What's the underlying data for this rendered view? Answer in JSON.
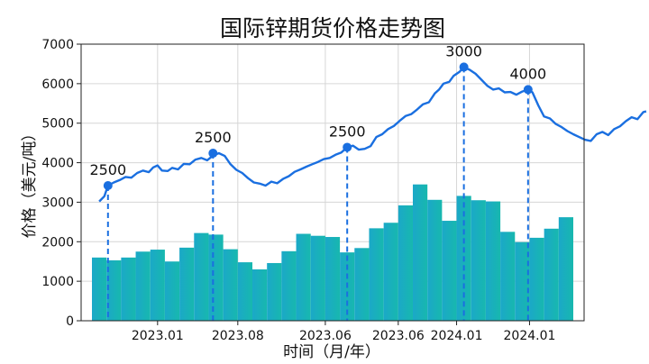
{
  "chart_data": {
    "type": "bar",
    "title": "国际锌期货价格走势图",
    "xlabel": "时间（月/年）",
    "ylabel": "价格（美元/吨）",
    "ylim": [
      0,
      7000
    ],
    "yticks": [
      0,
      1000,
      2000,
      3000,
      4000,
      5000,
      6000,
      7000
    ],
    "grid": true,
    "xtick_labels": [
      "2023.01",
      "2023.08",
      "2023.06",
      "2023.06",
      "2024.01",
      "2024.01"
    ],
    "xtick_index": [
      4,
      9.5,
      15.5,
      20.5,
      24.5,
      29.5
    ],
    "bars": {
      "values": [
        1600,
        1530,
        1600,
        1750,
        1800,
        1500,
        1850,
        2220,
        2180,
        1810,
        1480,
        1300,
        1460,
        1760,
        2200,
        2150,
        2120,
        1730,
        1840,
        2340,
        2480,
        2920,
        3450,
        3060,
        2530,
        3160,
        3050,
        3020,
        2250,
        1990,
        2100,
        2330,
        2620
      ],
      "colors": [
        "#1ba8c8",
        "#17b8ae"
      ]
    },
    "line": {
      "color": "#1a6fe0",
      "points": [
        [
          0.0,
          3020
        ],
        [
          0.35,
          3150
        ],
        [
          0.6,
          3420
        ],
        [
          1.0,
          3500
        ],
        [
          1.4,
          3560
        ],
        [
          1.8,
          3640
        ],
        [
          2.2,
          3620
        ],
        [
          2.6,
          3740
        ],
        [
          3.0,
          3800
        ],
        [
          3.4,
          3760
        ],
        [
          3.7,
          3880
        ],
        [
          4.0,
          3930
        ],
        [
          4.3,
          3800
        ],
        [
          4.7,
          3790
        ],
        [
          5.0,
          3870
        ],
        [
          5.4,
          3830
        ],
        [
          5.8,
          3970
        ],
        [
          6.2,
          3960
        ],
        [
          6.6,
          4080
        ],
        [
          7.0,
          4120
        ],
        [
          7.4,
          4060
        ],
        [
          7.8,
          4180
        ],
        [
          8.2,
          4240
        ],
        [
          8.6,
          4170
        ],
        [
          9.0,
          3960
        ],
        [
          9.4,
          3820
        ],
        [
          9.8,
          3740
        ],
        [
          10.2,
          3610
        ],
        [
          10.6,
          3500
        ],
        [
          11.0,
          3470
        ],
        [
          11.4,
          3420
        ],
        [
          11.8,
          3520
        ],
        [
          12.2,
          3480
        ],
        [
          12.6,
          3590
        ],
        [
          13.0,
          3660
        ],
        [
          13.4,
          3770
        ],
        [
          13.8,
          3830
        ],
        [
          14.2,
          3900
        ],
        [
          14.6,
          3960
        ],
        [
          15.0,
          4020
        ],
        [
          15.4,
          4090
        ],
        [
          15.8,
          4120
        ],
        [
          16.2,
          4200
        ],
        [
          16.6,
          4260
        ],
        [
          17.0,
          4390
        ],
        [
          17.4,
          4430
        ],
        [
          17.8,
          4330
        ],
        [
          18.2,
          4350
        ],
        [
          18.6,
          4420
        ],
        [
          19.0,
          4650
        ],
        [
          19.4,
          4720
        ],
        [
          19.8,
          4850
        ],
        [
          20.2,
          4930
        ],
        [
          20.6,
          5060
        ],
        [
          21.0,
          5180
        ],
        [
          21.4,
          5230
        ],
        [
          21.8,
          5350
        ],
        [
          22.2,
          5480
        ],
        [
          22.6,
          5530
        ],
        [
          23.0,
          5750
        ],
        [
          23.3,
          5850
        ],
        [
          23.6,
          6000
        ],
        [
          24.0,
          6050
        ],
        [
          24.3,
          6200
        ],
        [
          24.7,
          6300
        ],
        [
          25.0,
          6420
        ],
        [
          25.4,
          6350
        ],
        [
          25.8,
          6250
        ],
        [
          26.2,
          6100
        ],
        [
          26.6,
          5950
        ],
        [
          27.0,
          5850
        ],
        [
          27.4,
          5880
        ],
        [
          27.8,
          5780
        ],
        [
          28.2,
          5790
        ],
        [
          28.6,
          5720
        ],
        [
          29.0,
          5800
        ],
        [
          29.4,
          5850
        ],
        [
          29.7,
          5780
        ],
        [
          30.1,
          5450
        ],
        [
          30.5,
          5170
        ],
        [
          30.9,
          5120
        ],
        [
          31.3,
          4980
        ],
        [
          31.7,
          4900
        ],
        [
          32.1,
          4800
        ],
        [
          32.5,
          4720
        ],
        [
          32.9,
          4650
        ],
        [
          33.3,
          4580
        ],
        [
          33.7,
          4550
        ],
        [
          34.1,
          4720
        ],
        [
          34.5,
          4780
        ],
        [
          34.9,
          4700
        ],
        [
          35.3,
          4850
        ],
        [
          35.7,
          4920
        ],
        [
          36.1,
          5050
        ],
        [
          36.5,
          5150
        ],
        [
          36.9,
          5100
        ],
        [
          37.3,
          5280
        ],
        [
          37.5,
          5300
        ]
      ]
    },
    "annotations": [
      {
        "label": "2500",
        "x": 0.6,
        "y": 3420
      },
      {
        "label": "2500",
        "x": 7.8,
        "y": 4240
      },
      {
        "label": "2500",
        "x": 17.0,
        "y": 4390
      },
      {
        "label": "3000",
        "x": 25.0,
        "y": 6420
      },
      {
        "label": "4000",
        "x": 29.4,
        "y": 5850
      }
    ]
  }
}
